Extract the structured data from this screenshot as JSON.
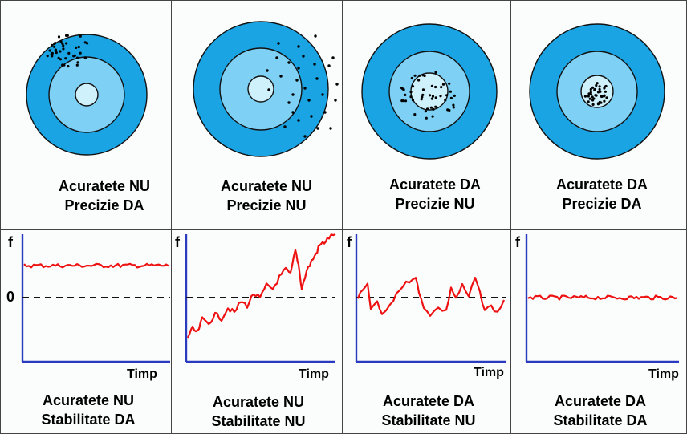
{
  "top_row": [
    {
      "line1": "Acuratete NU",
      "line2": "Precizie DA"
    },
    {
      "line1": "Acuratete NU",
      "line2": "Precizie NU"
    },
    {
      "line1": "Acuratete DA",
      "line2": "Precizie NU"
    },
    {
      "line1": "Acuratete DA",
      "line2": "Precizie DA"
    }
  ],
  "bottom_row": [
    {
      "line1": "Acuratete NU",
      "line2": "Stabilitate DA"
    },
    {
      "line1": "Acuratete NU",
      "line2": "Stabilitate NU"
    },
    {
      "line1": "Acuratete DA",
      "line2": "Stabilitate NU"
    },
    {
      "line1": "Acuratete DA",
      "line2": "Stabilitate DA"
    }
  ],
  "axis": {
    "y_label": "f",
    "x_label": "Timp",
    "zero_label": "0"
  },
  "colors": {
    "outer_ring": "#1aa4e4",
    "middle_ring": "#7fd0f5",
    "bullseye": "#cff1fb",
    "signal": "#ee1111",
    "axis": "#2a3bbf"
  }
}
